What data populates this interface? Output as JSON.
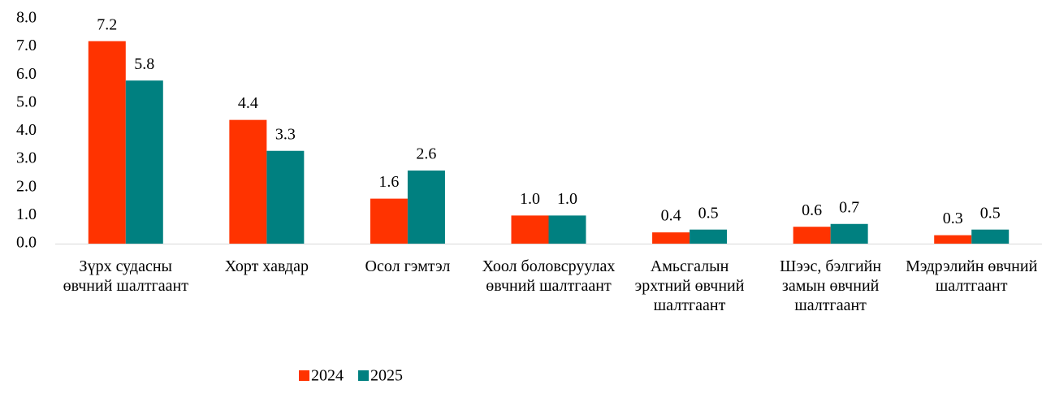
{
  "chart_data": {
    "type": "bar",
    "categories": [
      "Зүрх судасны өвчний шалтгаант",
      "Хорт хавдар",
      "Осол гэмтэл",
      "Хоол боловсруулах өвчний шалтгаант",
      "Амьсгалын эрхтний өвчний шалтгаант",
      "Шээс, бэлгийн замын өвчний шалтгаант",
      "Мэдрэлийн өвчний шалтгаант"
    ],
    "series": [
      {
        "name": "2024",
        "color": "#ff3300",
        "values": [
          7.2,
          4.4,
          1.6,
          1.0,
          0.4,
          0.6,
          0.3
        ],
        "value_labels": [
          "7.2",
          "4.4",
          "1.6",
          "1.0",
          "0.4",
          "0.6",
          "0.3"
        ]
      },
      {
        "name": "2025",
        "color": "#008080",
        "values": [
          5.8,
          3.3,
          2.6,
          1.0,
          0.5,
          0.7,
          0.5
        ],
        "value_labels": [
          "5.8",
          "3.3",
          "2.6",
          "1.0",
          "0.5",
          "0.7",
          "0.5"
        ]
      }
    ],
    "ylim": [
      0,
      8
    ],
    "yticks": [
      {
        "value": 0,
        "label": "0.0"
      },
      {
        "value": 1,
        "label": "1.0"
      },
      {
        "value": 2,
        "label": "2.0"
      },
      {
        "value": 3,
        "label": "3.0"
      },
      {
        "value": 4,
        "label": "4.0"
      },
      {
        "value": 5,
        "label": "5.0"
      },
      {
        "value": 6,
        "label": "6.0"
      },
      {
        "value": 7,
        "label": "7.0"
      },
      {
        "value": 8,
        "label": "8.0"
      }
    ],
    "grid": false,
    "legend": "bottom"
  }
}
